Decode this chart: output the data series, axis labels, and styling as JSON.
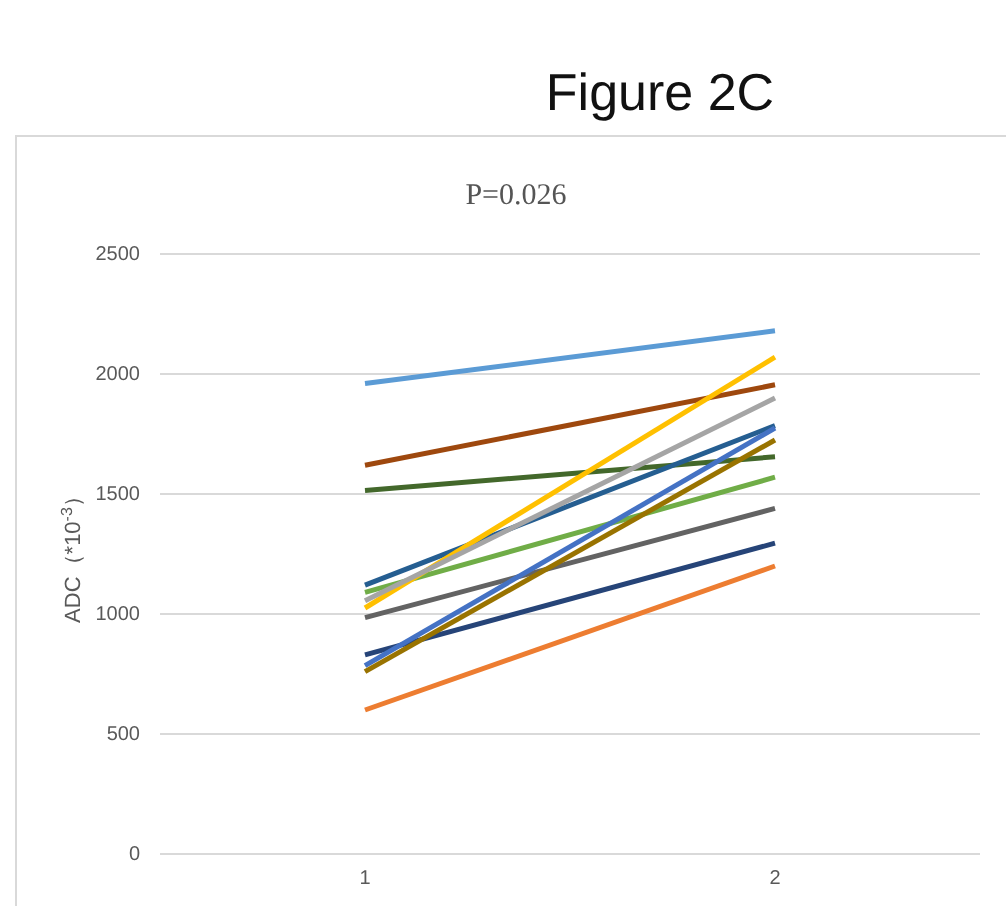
{
  "chart_data": {
    "type": "line",
    "title": "Figure 2C",
    "subtitle": "P=0.026",
    "ylabel": "ADC（*10$^{-3}$）",
    "categories": [
      "1",
      "2"
    ],
    "ylim": [
      0,
      2500
    ],
    "yticks": [
      0,
      500,
      1000,
      1500,
      2000,
      2500
    ],
    "grid": "y",
    "marker": "none",
    "line_style": "solid",
    "series": [
      {
        "color": "#5b9bd5",
        "values": [
          1960,
          2180
        ]
      },
      {
        "color": "#9e480e",
        "values": [
          1620,
          1955
        ]
      },
      {
        "color": "#43682b",
        "values": [
          1515,
          1655
        ]
      },
      {
        "color": "#255e91",
        "values": [
          1120,
          1785
        ]
      },
      {
        "color": "#70ad47",
        "values": [
          1090,
          1570
        ]
      },
      {
        "color": "#ffc000",
        "values": [
          1025,
          2070
        ]
      },
      {
        "color": "#a5a5a5",
        "values": [
          1055,
          1900
        ]
      },
      {
        "color": "#636363",
        "values": [
          985,
          1440
        ]
      },
      {
        "color": "#264478",
        "values": [
          830,
          1295
        ]
      },
      {
        "color": "#4472c4",
        "values": [
          785,
          1775
        ]
      },
      {
        "color": "#997300",
        "values": [
          760,
          1725
        ]
      },
      {
        "color": "#ed7d31",
        "values": [
          600,
          1200
        ]
      }
    ]
  }
}
